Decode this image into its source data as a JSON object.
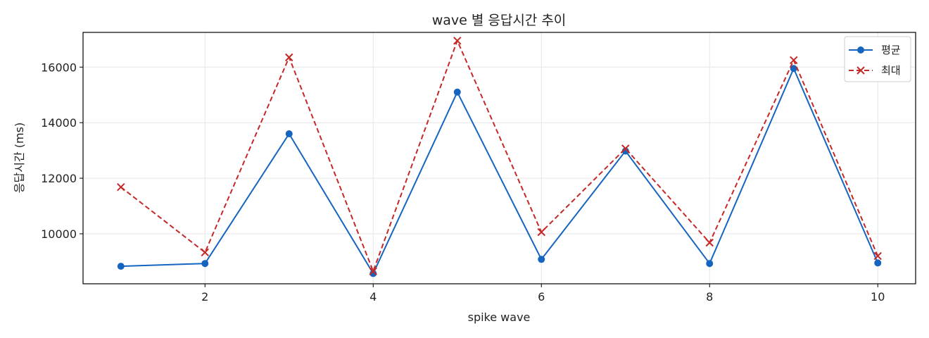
{
  "chart_data": {
    "type": "line",
    "title": "wave 별 응답시간 추이",
    "xlabel": "spike wave",
    "ylabel": "응답시간 (ms)",
    "x": [
      1,
      2,
      3,
      4,
      5,
      6,
      7,
      8,
      9,
      10
    ],
    "xlim": [
      0.55,
      10.45
    ],
    "ylim": [
      8200,
      17250
    ],
    "xticks": [
      2,
      4,
      6,
      8,
      10
    ],
    "yticks": [
      10000,
      12000,
      14000,
      16000
    ],
    "grid": true,
    "legend_position": "top-right",
    "series": [
      {
        "name": "평균",
        "color": "#1565c0",
        "line_style": "solid",
        "marker": "circle",
        "values": [
          8830,
          8930,
          13600,
          8570,
          15100,
          9080,
          12980,
          8930,
          15950,
          8950
        ]
      },
      {
        "name": "최대",
        "color": "#c62828",
        "line_style": "dashed",
        "marker": "x",
        "values": [
          11680,
          9330,
          16350,
          8650,
          16950,
          10060,
          13070,
          9680,
          16250,
          9200
        ]
      }
    ]
  }
}
